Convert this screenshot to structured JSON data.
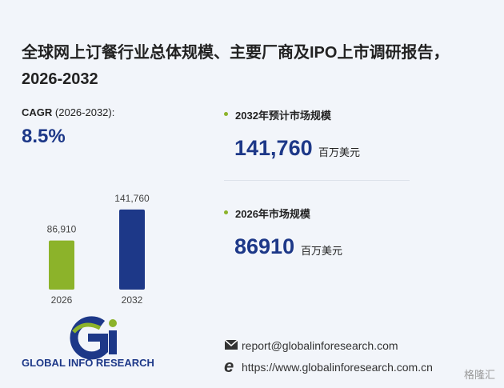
{
  "header": {
    "title": "全球网上订餐行业总体规模、主要厂商及IPO上市调研报告，2026-2032"
  },
  "cagr": {
    "label": "CAGR",
    "period": "(2026-2032):",
    "value": "8.5%"
  },
  "stats": [
    {
      "label": "2032年预计市场规模",
      "value": "141,760",
      "unit": "百万美元"
    },
    {
      "label": "2026年市场规模",
      "value": "86910",
      "unit": "百万美元"
    }
  ],
  "chart_data": {
    "type": "bar",
    "categories": [
      "2026",
      "2032"
    ],
    "values": [
      86910,
      141760
    ],
    "value_labels": [
      "86,910",
      "141,760"
    ],
    "colors": [
      "#8cb32a",
      "#1d3888"
    ],
    "ylim": [
      0,
      150000
    ]
  },
  "footer": {
    "brand": "GLOBAL INFO RESEARCH",
    "email": "report@globalinforesearch.com",
    "website": "https://www.globalinforesearch.com.cn",
    "watermark": "格隆汇"
  }
}
